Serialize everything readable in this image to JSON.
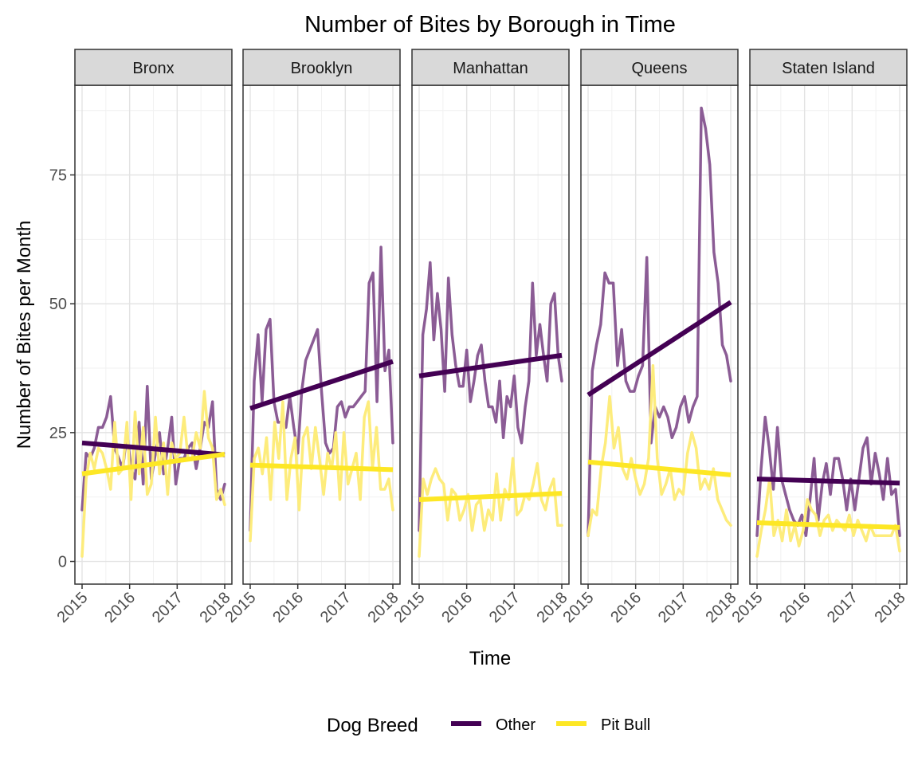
{
  "chart_data": {
    "type": "line",
    "title": "Number of Bites by Borough in Time",
    "xlabel": "Time",
    "ylabel": "Number of Bites per Month",
    "xlim": [
      2015.0,
      2018.0
    ],
    "ylim": [
      0,
      90
    ],
    "x_ticks": [
      2015,
      2016,
      2017,
      2018
    ],
    "x_tick_labels": [
      "2015",
      "2016",
      "2017",
      "2018"
    ],
    "y_ticks": [
      0,
      25,
      50,
      75
    ],
    "y_tick_labels": [
      "0",
      "25",
      "50",
      "75"
    ],
    "grid": true,
    "legend": {
      "title": "Dog Breed",
      "position": "bottom",
      "entries": [
        {
          "name": "Other",
          "color": "#440154"
        },
        {
          "name": "Pit Bull",
          "color": "#FDE725"
        }
      ]
    },
    "panels": [
      {
        "name": "Bronx",
        "series": [
          {
            "name": "Other",
            "values": [
              10,
              21,
              20,
              22,
              26,
              26,
              28,
              32,
              22,
              20,
              18,
              25,
              18,
              16,
              27,
              15,
              34,
              16,
              21,
              25,
              17,
              22,
              28,
              15,
              20,
              20,
              22,
              23,
              18,
              22,
              27,
              26,
              31,
              14,
              12,
              15
            ],
            "trend": [
              23,
              20.7
            ]
          },
          {
            "name": "Pit Bull",
            "values": [
              1,
              16,
              21,
              18,
              22,
              21,
              18,
              14,
              27,
              17,
              18,
              27,
              12,
              29,
              17,
              26,
              13,
              15,
              28,
              17,
              23,
              13,
              23,
              20,
              21,
              28,
              20,
              20,
              25,
              22,
              33,
              24,
              22,
              12,
              14,
              11
            ],
            "trend": [
              17,
              20.8
            ]
          }
        ]
      },
      {
        "name": "Brooklyn",
        "series": [
          {
            "name": "Other",
            "values": [
              6,
              35,
              44,
              31,
              45,
              47,
              31,
              27,
              27,
              26,
              32,
              26,
              21,
              33,
              39,
              41,
              43,
              45,
              33,
              23,
              21,
              22,
              30,
              31,
              28,
              30,
              30,
              31,
              32,
              33,
              54,
              56,
              31,
              61,
              37,
              41,
              23
            ],
            "trend": [
              29.7,
              38.8
            ]
          },
          {
            "name": "Pit Bull",
            "values": [
              4,
              20,
              22,
              17,
              24,
              12,
              27,
              20,
              31,
              12,
              20,
              24,
              10,
              24,
              26,
              18,
              26,
              20,
              13,
              21,
              18,
              25,
              12,
              25,
              15,
              18,
              21,
              12,
              28,
              31,
              18,
              26,
              14,
              14,
              16,
              10
            ],
            "trend": [
              18.7,
              17.8
            ]
          }
        ]
      },
      {
        "name": "Manhattan",
        "series": [
          {
            "name": "Other",
            "values": [
              6,
              44,
              49,
              58,
              43,
              52,
              45,
              33,
              55,
              44,
              38,
              34,
              34,
              41,
              31,
              35,
              40,
              42,
              35,
              30,
              30,
              27,
              35,
              24,
              32,
              30,
              36,
              26,
              23,
              30,
              35,
              54,
              40,
              46,
              40,
              35,
              50,
              52,
              40,
              35
            ],
            "trend": [
              36,
              40
            ]
          },
          {
            "name": "Pit Bull",
            "values": [
              1,
              16,
              13,
              16,
              18,
              16,
              15,
              8,
              14,
              13,
              8,
              10,
              13,
              6,
              11,
              12,
              6,
              10,
              8,
              17,
              8,
              14,
              12,
              20,
              9,
              10,
              13,
              12,
              15,
              19,
              12,
              10,
              14,
              16,
              7,
              7
            ],
            "trend": [
              12,
              13.2
            ]
          }
        ]
      },
      {
        "name": "Queens",
        "series": [
          {
            "name": "Other",
            "values": [
              5,
              37,
              42,
              46,
              56,
              54,
              54,
              38,
              45,
              35,
              33,
              33,
              36,
              38,
              59,
              23,
              30,
              28,
              30,
              28,
              24,
              26,
              30,
              32,
              27,
              30,
              32,
              88,
              84,
              77,
              60,
              54,
              42,
              40,
              35
            ],
            "trend": [
              32.3,
              50.3
            ]
          },
          {
            "name": "Pit Bull",
            "values": [
              5,
              10,
              9,
              18,
              23,
              32,
              22,
              26,
              18,
              16,
              20,
              16,
              13,
              15,
              20,
              38,
              20,
              13,
              15,
              18,
              12,
              14,
              13,
              21,
              25,
              22,
              14,
              16,
              14,
              18,
              12,
              10,
              8,
              7
            ],
            "trend": [
              19.3,
              16.8
            ]
          }
        ]
      },
      {
        "name": "Staten Island",
        "series": [
          {
            "name": "Other",
            "values": [
              5,
              18,
              28,
              22,
              14,
              26,
              16,
              13,
              10,
              8,
              7,
              9,
              5,
              12,
              20,
              8,
              15,
              19,
              13,
              20,
              20,
              16,
              10,
              16,
              10,
              16,
              22,
              24,
              15,
              21,
              17,
              12,
              20,
              13,
              14,
              5
            ],
            "trend": [
              16,
              15.2
            ]
          },
          {
            "name": "Pit Bull",
            "values": [
              1,
              6,
              10,
              16,
              5,
              8,
              4,
              10,
              4,
              7,
              3,
              6,
              12,
              10,
              9,
              5,
              8,
              9,
              6,
              8,
              7,
              6,
              9,
              5,
              8,
              6,
              4,
              7,
              5,
              5,
              5,
              5,
              5,
              7,
              2
            ],
            "trend": [
              7.5,
              6.6
            ]
          }
        ]
      }
    ]
  }
}
